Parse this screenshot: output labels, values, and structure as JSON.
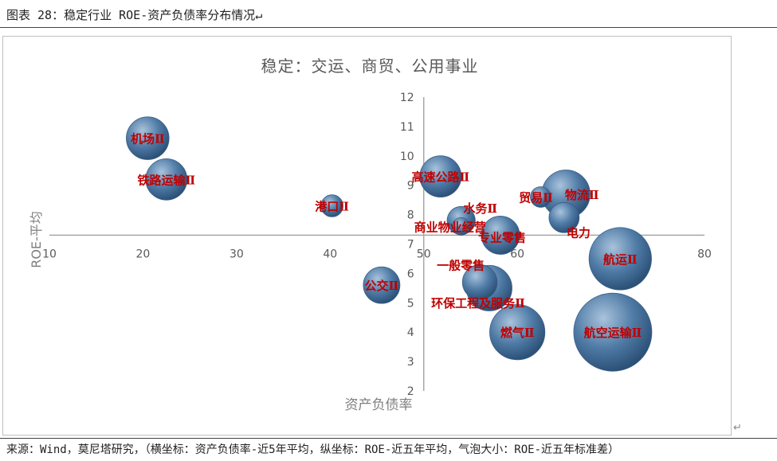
{
  "figure": {
    "caption": "图表 28：稳定行业 ROE-资产负债率分布情况↵",
    "source": "来源：Wind，莫尼塔研究，（横坐标：资产负债率-近5年平均，纵坐标：ROE-近五年平均，气泡大小：ROE-近五年标准差）",
    "return_mark": "↵"
  },
  "chart_data": {
    "type": "scatter",
    "bubble": true,
    "title": "稳定：交运、商贸、公用事业",
    "xlabel": "资产负债率",
    "ylabel": "ROE-平均",
    "xlim": [
      10,
      80
    ],
    "ylim": [
      2,
      12
    ],
    "x_ticks": [
      10,
      20,
      30,
      40,
      50,
      60,
      70,
      80
    ],
    "y_ticks": [
      2,
      3,
      4,
      5,
      6,
      7,
      8,
      9,
      10,
      11,
      12
    ],
    "x_axis_crosses_y_at": 7.3,
    "y_axis_crosses_x_at": 50,
    "grid": false,
    "legend": "none",
    "colors": {
      "bubble_light": "#a9c3dc",
      "bubble_mid": "#4f7ba6",
      "bubble_dark": "#2b4f75",
      "label": "#c00000",
      "axis": "#a6a6a6",
      "title": "#595959"
    },
    "points": [
      {
        "label": "机场Ⅱ",
        "x": 20.5,
        "y": 10.6,
        "size": 0.3
      },
      {
        "label": "铁路运输Ⅱ",
        "x": 22.5,
        "y": 9.2,
        "size": 0.28
      },
      {
        "label": "港口Ⅱ",
        "x": 40.2,
        "y": 8.3,
        "size": 0.08
      },
      {
        "label": "高速公路Ⅱ",
        "x": 51.8,
        "y": 9.3,
        "size": 0.28
      },
      {
        "label": "公交Ⅱ",
        "x": 45.5,
        "y": 5.6,
        "size": 0.22
      },
      {
        "label": "贸易Ⅱ",
        "x": 62.5,
        "y": 8.6,
        "size": 0.07
      },
      {
        "label": "物流Ⅱ",
        "x": 65.2,
        "y": 8.7,
        "size": 0.38
      },
      {
        "label": "水务Ⅱ",
        "x": 54.0,
        "y": 7.8,
        "size": 0.13
      },
      {
        "label": "电力",
        "x": 65.0,
        "y": 7.9,
        "size": 0.15
      },
      {
        "label": "商业物业经营",
        "x": 54.0,
        "y": 7.6,
        "size": 0.05
      },
      {
        "label": "专业零售",
        "x": 58.2,
        "y": 7.3,
        "size": 0.24
      },
      {
        "label": "航运Ⅱ",
        "x": 71.0,
        "y": 6.5,
        "size": 0.64
      },
      {
        "label": "一般零售",
        "x": 56.0,
        "y": 5.7,
        "size": 0.2
      },
      {
        "label": "环保工程及服务Ⅱ",
        "x": 57.0,
        "y": 5.5,
        "size": 0.34
      },
      {
        "label": "燃气Ⅱ",
        "x": 60.0,
        "y": 4.0,
        "size": 0.5
      },
      {
        "label": "航空运输Ⅱ",
        "x": 70.2,
        "y": 4.0,
        "size": 1.0
      }
    ]
  }
}
